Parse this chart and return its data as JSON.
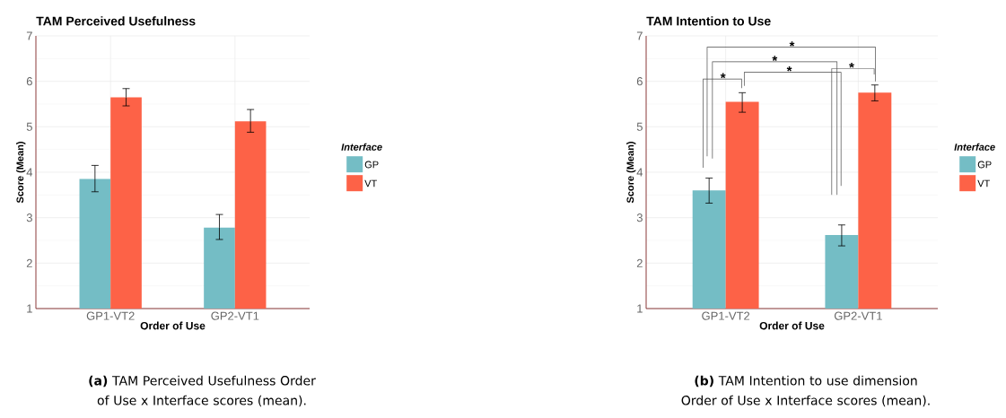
{
  "chart_data": [
    {
      "type": "bar",
      "title": "TAM Perceived Usefulness",
      "xlabel": "Order of Use",
      "ylabel": "Score (Mean)",
      "legend_title": "Interface",
      "categories": [
        "GP1-VT2",
        "GP2-VT1"
      ],
      "series": [
        {
          "name": "GP",
          "color": "#74bdc5",
          "values": [
            3.85,
            2.78
          ],
          "errors": [
            [
              3.57,
              4.15
            ],
            [
              2.52,
              3.07
            ]
          ]
        },
        {
          "name": "VT",
          "color": "#fd6247",
          "values": [
            5.65,
            5.12
          ],
          "errors": [
            [
              5.46,
              5.84
            ],
            [
              4.88,
              5.38
            ]
          ]
        }
      ],
      "ylim": [
        1,
        7
      ],
      "yticks": [
        1,
        2,
        3,
        4,
        5,
        6,
        7
      ],
      "grid": true,
      "legend": "right",
      "annotations": [
        "**(a)** TAM Perceived Usefulness Order of Use x Interface scores (mean)."
      ]
    },
    {
      "type": "bar",
      "title": "TAM Intention to Use",
      "xlabel": "Order of Use",
      "ylabel": "Score (Mean)",
      "legend_title": "Interface",
      "categories": [
        "GP1-VT2",
        "GP2-VT1"
      ],
      "series": [
        {
          "name": "GP",
          "color": "#74bdc5",
          "values": [
            3.6,
            2.62
          ],
          "errors": [
            [
              3.32,
              3.87
            ],
            [
              2.38,
              2.84
            ]
          ]
        },
        {
          "name": "VT",
          "color": "#fd6247",
          "values": [
            5.55,
            5.75
          ],
          "errors": [
            [
              5.32,
              5.75
            ],
            [
              5.57,
              5.92
            ]
          ]
        }
      ],
      "ylim": [
        1,
        7
      ],
      "yticks": [
        1,
        2,
        3,
        4,
        5,
        6,
        7
      ],
      "grid": true,
      "legend": "right",
      "annotations": [
        "**(b)** TAM Intention to use dimension Order of Use x Interface scores (mean).",
        "*",
        "*",
        "*",
        "*",
        "*"
      ]
    }
  ]
}
